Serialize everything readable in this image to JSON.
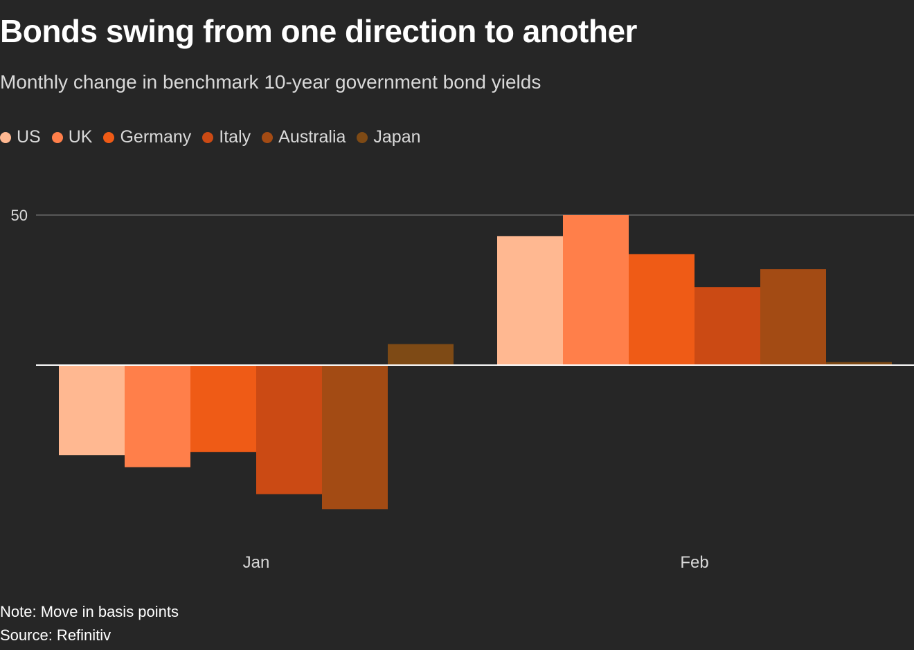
{
  "title": "Bonds swing from one direction to another",
  "subtitle": "Monthly change in benchmark 10-year government bond yields",
  "note": "Note: Move in basis points",
  "source": "Source: Refinitiv",
  "chart_data": {
    "type": "bar",
    "categories": [
      "Jan",
      "Feb"
    ],
    "series": [
      {
        "name": "US",
        "color": "#ffb891",
        "values": [
          -30,
          43
        ]
      },
      {
        "name": "UK",
        "color": "#ff7f4a",
        "values": [
          -34,
          50
        ]
      },
      {
        "name": "Germany",
        "color": "#ef5b16",
        "values": [
          -29,
          37
        ]
      },
      {
        "name": "Italy",
        "color": "#cb4a14",
        "values": [
          -43,
          26
        ]
      },
      {
        "name": "Australia",
        "color": "#a34b14",
        "values": [
          -48,
          32
        ]
      },
      {
        "name": "Japan",
        "color": "#7e4a15",
        "values": [
          7,
          1
        ]
      }
    ],
    "yticks": [
      50
    ],
    "ylim": [
      -60,
      50
    ],
    "grid": true,
    "legend_position": "top-left",
    "xlabel": "",
    "ylabel": ""
  }
}
